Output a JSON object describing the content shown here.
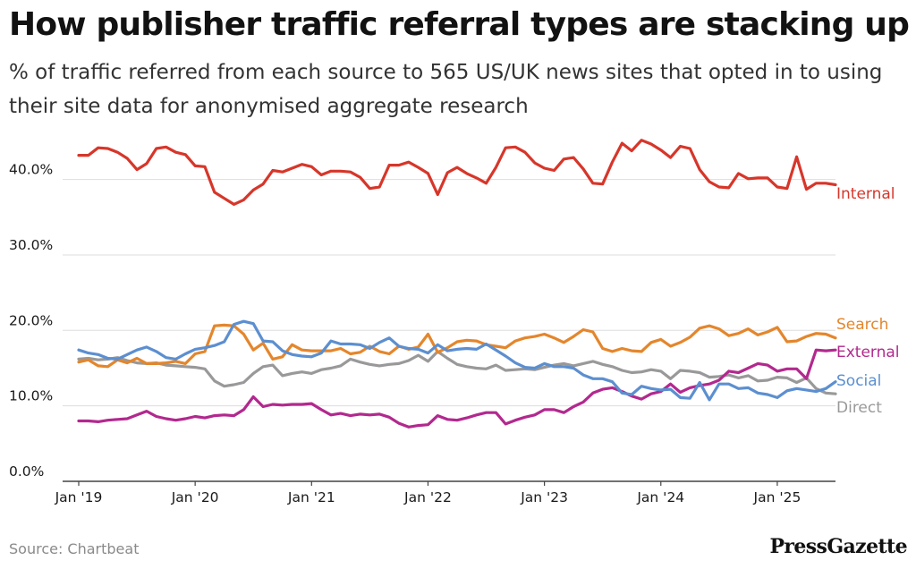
{
  "title": "How publisher traffic referral types are stacking up",
  "subtitle": "% of traffic referred from each source to 565 US/UK news sites that opted in to using their site data for anonymised aggregate research",
  "source": "Source: Chartbeat",
  "brand": "PressGazette",
  "chart_data": {
    "type": "line",
    "title": "How publisher traffic referral types are stacking up",
    "xlabel": "",
    "ylabel": "",
    "ylim": [
      0,
      46
    ],
    "grid": true,
    "legend": "direct labels at line ends (right)",
    "x_ticks": [
      "Jan '19",
      "Jan '20",
      "Jan '21",
      "Jan '22",
      "Jan '23",
      "Jan '24",
      "Jan '25"
    ],
    "y_ticks": [
      "0.0%",
      "10.0%",
      "20.0%",
      "30.0%",
      "40.0%"
    ],
    "y_tick_values": [
      0,
      10,
      20,
      30,
      40
    ],
    "x_start": "2019-01",
    "x_end": "2025-07",
    "series": [
      {
        "name": "Internal",
        "color": "#d7362a",
        "values": [
          43.2,
          43.2,
          44.2,
          44.1,
          43.6,
          42.8,
          41.3,
          42.1,
          44.1,
          44.3,
          43.6,
          43.3,
          41.8,
          41.7,
          38.3,
          37.5,
          36.7,
          37.3,
          38.6,
          39.4,
          41.2,
          41.0,
          41.5,
          42.0,
          41.7,
          40.6,
          41.1,
          41.1,
          41.0,
          40.3,
          38.8,
          39.0,
          41.9,
          41.9,
          42.3,
          41.6,
          40.8,
          38.0,
          40.9,
          41.6,
          40.8,
          40.2,
          39.5,
          41.6,
          44.2,
          44.3,
          43.6,
          42.2,
          41.5,
          41.2,
          42.7,
          42.9,
          41.4,
          39.5,
          39.4,
          42.3,
          44.8,
          43.8,
          45.2,
          44.7,
          43.9,
          42.9,
          44.4,
          44.1,
          41.3,
          39.7,
          39.0,
          38.9,
          40.8,
          40.1,
          40.2,
          40.2,
          39.0,
          38.8,
          43.0,
          38.7,
          39.5,
          39.5,
          39.3
        ]
      },
      {
        "name": "Search",
        "color": "#e4862c",
        "values": [
          15.8,
          16.1,
          15.3,
          15.2,
          16.1,
          15.7,
          16.3,
          15.6,
          15.6,
          15.7,
          15.9,
          15.6,
          16.9,
          17.2,
          20.6,
          20.7,
          20.6,
          19.5,
          17.4,
          18.3,
          16.2,
          16.5,
          18.1,
          17.4,
          17.3,
          17.3,
          17.3,
          17.6,
          16.9,
          17.1,
          17.9,
          17.2,
          16.9,
          17.9,
          17.5,
          17.8,
          19.5,
          17.1,
          17.7,
          18.5,
          18.7,
          18.6,
          18.1,
          17.9,
          17.7,
          18.6,
          19.0,
          19.2,
          19.5,
          19.0,
          18.4,
          19.2,
          20.1,
          19.8,
          17.6,
          17.2,
          17.6,
          17.3,
          17.2,
          18.4,
          18.8,
          17.9,
          18.4,
          19.1,
          20.3,
          20.6,
          20.2,
          19.3,
          19.6,
          20.2,
          19.4,
          19.8,
          20.4,
          18.5,
          18.6,
          19.2,
          19.6,
          19.5,
          19.0
        ]
      },
      {
        "name": "External",
        "color": "#b2298e",
        "values": [
          8.0,
          8.0,
          7.9,
          8.1,
          8.2,
          8.3,
          8.8,
          9.3,
          8.6,
          8.3,
          8.1,
          8.3,
          8.6,
          8.4,
          8.7,
          8.8,
          8.7,
          9.5,
          11.2,
          9.9,
          10.2,
          10.1,
          10.2,
          10.2,
          10.3,
          9.5,
          8.8,
          9.0,
          8.7,
          8.9,
          8.8,
          8.9,
          8.5,
          7.7,
          7.2,
          7.4,
          7.5,
          8.7,
          8.2,
          8.1,
          8.4,
          8.8,
          9.1,
          9.1,
          7.6,
          8.1,
          8.5,
          8.8,
          9.5,
          9.5,
          9.1,
          9.9,
          10.5,
          11.7,
          12.2,
          12.4,
          11.9,
          11.3,
          10.9,
          11.6,
          11.9,
          12.9,
          11.8,
          12.4,
          12.7,
          12.9,
          13.4,
          14.6,
          14.4,
          15.0,
          15.6,
          15.4,
          14.6,
          14.9,
          14.9,
          13.6,
          17.4,
          17.3,
          17.4
        ]
      },
      {
        "name": "Social",
        "color": "#5c8fd0",
        "values": [
          17.4,
          17.0,
          16.8,
          16.3,
          16.2,
          16.8,
          17.4,
          17.8,
          17.2,
          16.4,
          16.2,
          16.9,
          17.5,
          17.7,
          18.0,
          18.5,
          20.8,
          21.2,
          20.9,
          18.6,
          18.5,
          17.3,
          16.8,
          16.6,
          16.5,
          17.0,
          18.6,
          18.2,
          18.2,
          18.1,
          17.6,
          18.4,
          19.0,
          17.9,
          17.6,
          17.5,
          17.0,
          18.1,
          17.3,
          17.5,
          17.6,
          17.5,
          18.2,
          17.4,
          16.6,
          15.7,
          15.1,
          15.0,
          15.6,
          15.2,
          15.2,
          15.0,
          14.1,
          13.6,
          13.6,
          13.2,
          11.7,
          11.5,
          12.6,
          12.3,
          12.1,
          12.2,
          11.1,
          11.0,
          13.1,
          10.8,
          12.9,
          12.9,
          12.3,
          12.4,
          11.7,
          11.5,
          11.1,
          12.0,
          12.3,
          12.1,
          11.9,
          12.3,
          13.2
        ]
      },
      {
        "name": "Direct",
        "color": "#999999",
        "values": [
          16.2,
          16.3,
          16.1,
          16.2,
          16.4,
          16.0,
          15.7,
          15.6,
          15.7,
          15.4,
          15.3,
          15.2,
          15.1,
          14.9,
          13.3,
          12.6,
          12.8,
          13.1,
          14.3,
          15.2,
          15.4,
          14.0,
          14.3,
          14.5,
          14.3,
          14.8,
          15.0,
          15.3,
          16.2,
          15.8,
          15.5,
          15.3,
          15.5,
          15.6,
          16.0,
          16.7,
          15.9,
          17.2,
          16.3,
          15.5,
          15.2,
          15.0,
          14.9,
          15.4,
          14.7,
          14.8,
          14.9,
          14.8,
          15.1,
          15.4,
          15.6,
          15.3,
          15.6,
          15.9,
          15.5,
          15.2,
          14.7,
          14.4,
          14.5,
          14.8,
          14.6,
          13.6,
          14.7,
          14.6,
          14.4,
          13.8,
          13.9,
          14.1,
          13.7,
          14.0,
          13.3,
          13.4,
          13.8,
          13.7,
          13.1,
          13.7,
          12.3,
          11.7,
          11.6
        ]
      }
    ]
  }
}
